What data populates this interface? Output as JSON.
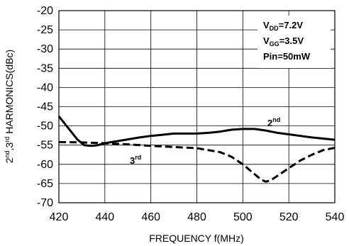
{
  "chart_data": {
    "type": "line",
    "ylabel": "2nd,3rd HARMONICS(dBc)",
    "ylabel_parts": {
      "a": "2",
      "a_sup": "nd",
      "b": ",3",
      "b_sup": "rd",
      "c": " HARMONICS(dBc)"
    },
    "xlabel": "FREQUENCY f(MHz)",
    "xlim": [
      420,
      540
    ],
    "ylim": [
      -70,
      -20
    ],
    "xticks": [
      420,
      440,
      460,
      480,
      500,
      520,
      540
    ],
    "yticks": [
      -20,
      -25,
      -30,
      -35,
      -40,
      -45,
      -50,
      -55,
      -60,
      -65,
      -70
    ],
    "grid": true,
    "conditions": [
      {
        "base": "V",
        "sub": "DD",
        "value": "=7.2V"
      },
      {
        "base": "V",
        "sub": "GG",
        "value": "=3.5V"
      },
      {
        "base": "Pin",
        "sub": "",
        "value": "=50mW"
      }
    ],
    "series": [
      {
        "name": "2nd",
        "label_base": "2",
        "label_sup": "nd",
        "style": "solid",
        "x": [
          420,
          424,
          428,
          431,
          434,
          437,
          440,
          445,
          450,
          455,
          460,
          465,
          470,
          475,
          480,
          485,
          490,
          495,
          500,
          505,
          510,
          515,
          520,
          525,
          530,
          535,
          540
        ],
        "y": [
          -47.5,
          -50.5,
          -53.5,
          -55,
          -55.2,
          -55,
          -54.5,
          -54,
          -53.5,
          -53,
          -52.6,
          -52.3,
          -52,
          -52,
          -52,
          -51.8,
          -51.5,
          -51,
          -50.8,
          -50.8,
          -51.2,
          -51.8,
          -52.2,
          -52.6,
          -53,
          -53.3,
          -53.6
        ]
      },
      {
        "name": "3rd",
        "label_base": "3",
        "label_sup": "rd",
        "style": "dashed",
        "x": [
          420,
          430,
          440,
          450,
          460,
          470,
          480,
          490,
          495,
          500,
          505,
          508,
          510,
          512,
          515,
          520,
          525,
          530,
          535,
          540
        ],
        "y": [
          -54.2,
          -54.3,
          -54.5,
          -54.8,
          -55.2,
          -55.5,
          -55.8,
          -56.8,
          -58,
          -60,
          -62.5,
          -64,
          -64.5,
          -64.2,
          -63,
          -61,
          -59,
          -57.5,
          -56.3,
          -55.7
        ]
      }
    ]
  }
}
